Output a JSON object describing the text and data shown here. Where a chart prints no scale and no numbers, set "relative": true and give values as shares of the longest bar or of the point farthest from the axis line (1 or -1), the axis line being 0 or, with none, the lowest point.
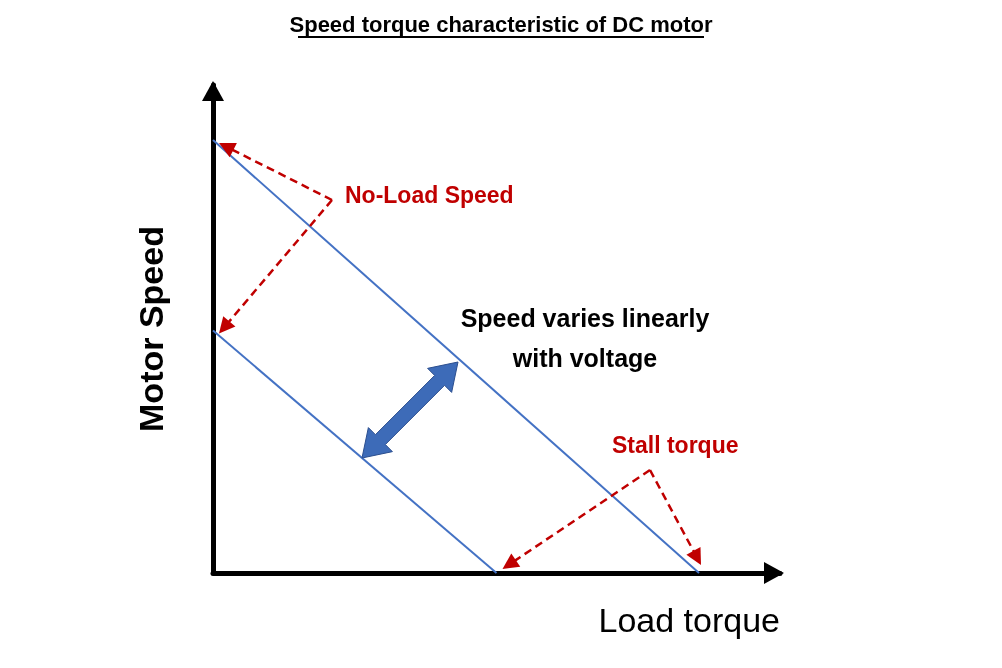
{
  "chart_data": {
    "type": "line",
    "title": "Speed torque characteristic of DC motor",
    "xlabel": "Load torque",
    "ylabel": "Motor Speed",
    "relative": true,
    "grid": false,
    "marker": "none",
    "line_style": "solid",
    "categories": [
      null,
      null,
      null,
      null,
      null,
      null,
      null,
      null,
      null,
      null,
      null,
      null,
      null,
      null,
      null
    ],
    "series": [
      {
        "color": "#4472c4",
        "values": [
          1,
          null,
          null,
          null,
          null,
          null,
          null,
          null,
          null,
          null,
          null,
          null,
          0,
          null,
          null
        ]
      },
      {
        "color": "#4472c4",
        "values": [
          0.56,
          null,
          null,
          null,
          null,
          null,
          null,
          0,
          null,
          null,
          null,
          null,
          null,
          null,
          null
        ]
      }
    ],
    "annotations": [
      "No-Load Speed",
      "Speed varies linearly\nwith voltage",
      "Stall torque"
    ]
  }
}
